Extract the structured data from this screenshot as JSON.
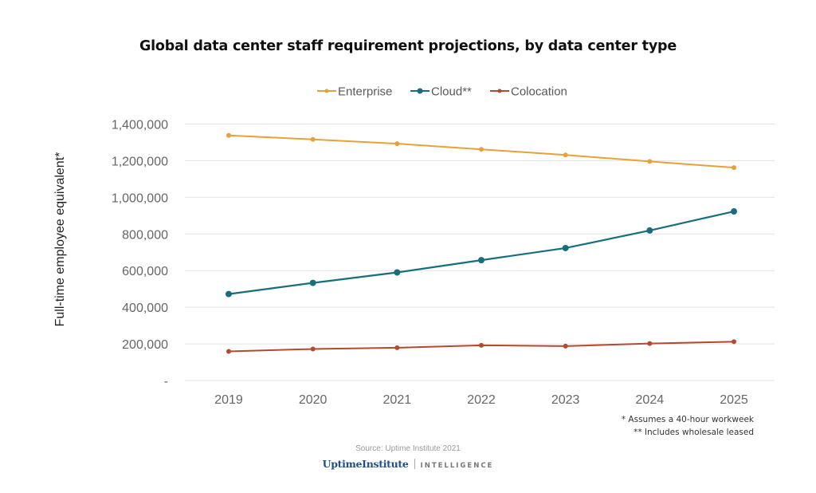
{
  "chart_data": {
    "type": "line",
    "title": "Global data center staff requirement projections, by data center type",
    "xlabel": "",
    "ylabel": "Full-time employee equivalent*",
    "categories": [
      "2019",
      "2020",
      "2021",
      "2022",
      "2023",
      "2024",
      "2025"
    ],
    "ylim": [
      0,
      1400000
    ],
    "yticks": [
      0,
      200000,
      400000,
      600000,
      800000,
      1000000,
      1200000,
      1400000
    ],
    "ytick_labels": [
      "-",
      "200,000",
      "400,000",
      "600,000",
      "800,000",
      "1,000,000",
      "1,200,000",
      "1,400,000"
    ],
    "grid": true,
    "legend_position": "top-center",
    "series": [
      {
        "name": "Enterprise",
        "color": "#e8a136",
        "values": [
          1338000,
          1316000,
          1293000,
          1262000,
          1231000,
          1196000,
          1162000
        ]
      },
      {
        "name": "Cloud**",
        "color": "#156f7c",
        "values": [
          472000,
          533000,
          590000,
          657000,
          723000,
          819000,
          923000
        ]
      },
      {
        "name": "Colocation",
        "color": "#b5492f",
        "values": [
          159000,
          172000,
          179000,
          192000,
          188000,
          202000,
          212000
        ]
      }
    ],
    "annotations": [
      "* Assumes a 40-hour workweek",
      "** Includes wholesale leased"
    ]
  },
  "footer": {
    "footnote_1": "* Assumes a 40-hour  workweek",
    "footnote_2": "** Includes wholesale leased",
    "source": "Source: Uptime Institute 2021",
    "logo_brand": "UptimeInstitute",
    "logo_sub": "INTELLIGENCE"
  }
}
